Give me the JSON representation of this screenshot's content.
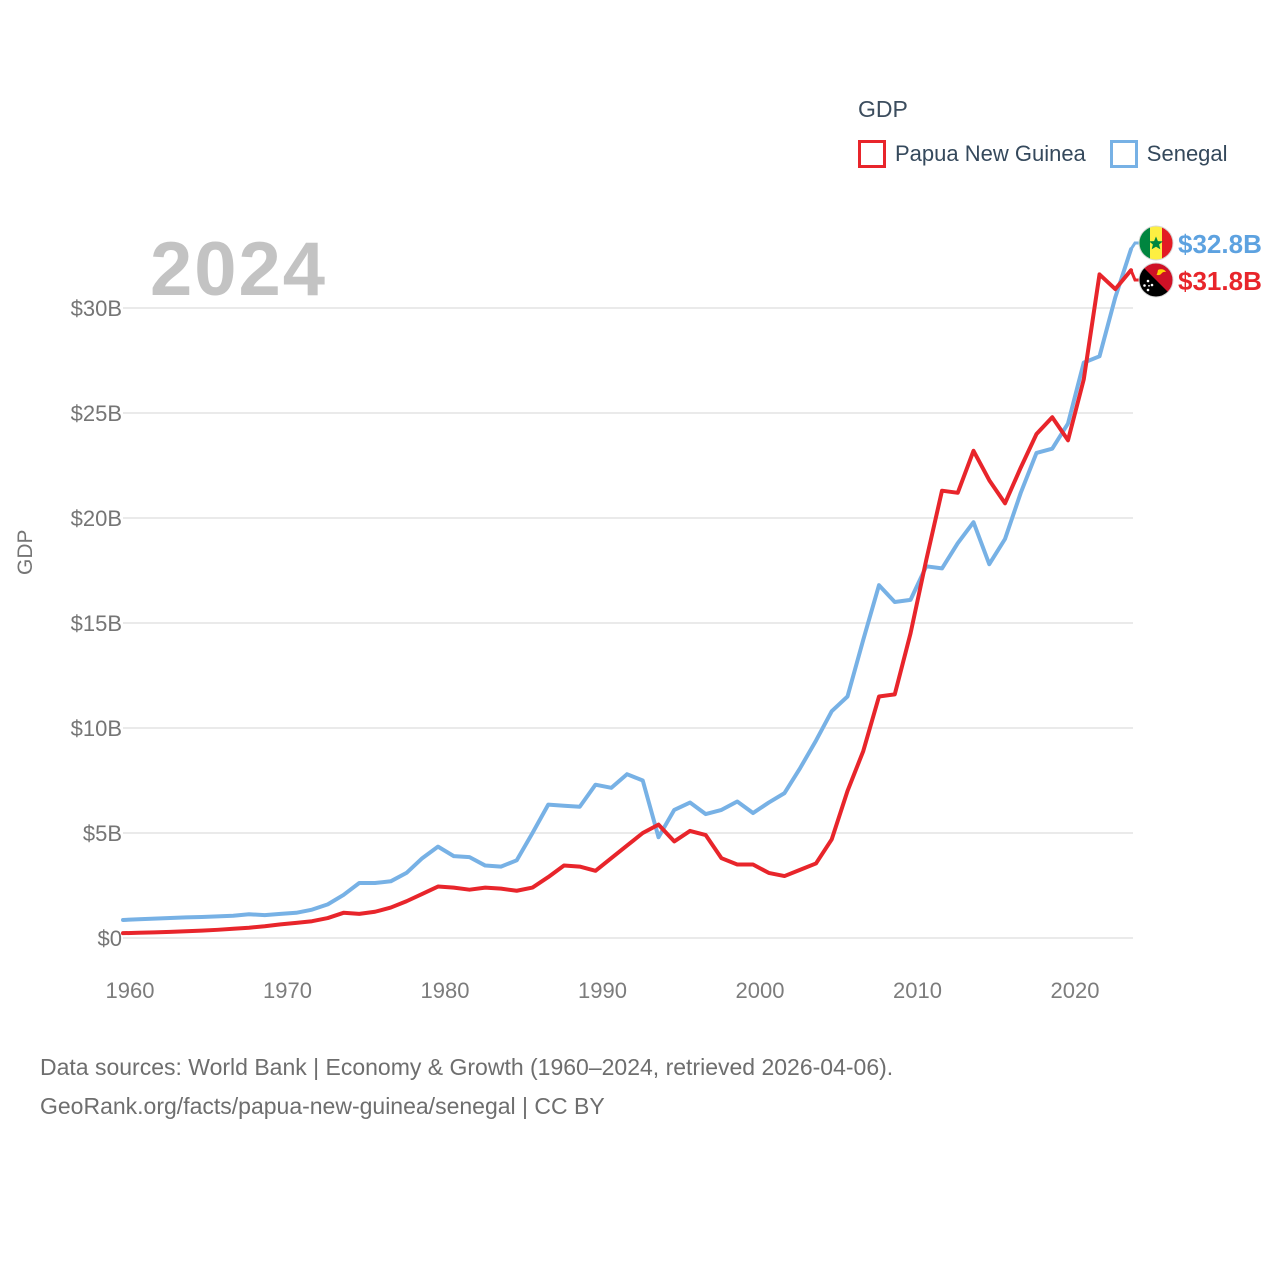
{
  "page": {
    "background": "#ffffff"
  },
  "legend": {
    "title": "GDP",
    "items": [
      {
        "label": "Papua New Guinea",
        "color": "#e8252b"
      },
      {
        "label": "Senegal",
        "color": "#77b1e5"
      }
    ]
  },
  "watermark": "2024",
  "end_labels": [
    {
      "series": "Senegal",
      "text": "$32.8B",
      "color": "#5da2e0",
      "flag_icon": "senegal-flag"
    },
    {
      "series": "Papua New Guinea",
      "text": "$31.8B",
      "color": "#e8252b",
      "flag_icon": "papua-new-guinea-flag"
    }
  ],
  "footer": {
    "line1": "Data sources: World Bank | Economy & Growth (1960–2024, retrieved 2026-04-06).",
    "line2": "GeoRank.org/facts/papua-new-guinea/senegal | CC BY"
  },
  "chart_data": {
    "type": "line",
    "title": "GDP",
    "xlabel": "",
    "ylabel": "GDP",
    "xlim": [
      1960,
      2024
    ],
    "ylim": [
      0,
      33.6
    ],
    "grid": "horizontal",
    "legend_position": "top-right",
    "x": [
      1960,
      1961,
      1962,
      1963,
      1964,
      1965,
      1966,
      1967,
      1968,
      1969,
      1970,
      1971,
      1972,
      1973,
      1974,
      1975,
      1976,
      1977,
      1978,
      1979,
      1980,
      1981,
      1982,
      1983,
      1984,
      1985,
      1986,
      1987,
      1988,
      1989,
      1990,
      1991,
      1992,
      1993,
      1994,
      1995,
      1996,
      1997,
      1998,
      1999,
      2000,
      2001,
      2002,
      2003,
      2004,
      2005,
      2006,
      2007,
      2008,
      2009,
      2010,
      2011,
      2012,
      2013,
      2014,
      2015,
      2016,
      2017,
      2018,
      2019,
      2020,
      2021,
      2022,
      2023,
      2024
    ],
    "x_ticks": {
      "values": [
        1960,
        1970,
        1980,
        1990,
        2000,
        2010,
        2020
      ],
      "labels": [
        "1960",
        "1970",
        "1980",
        "1990",
        "2000",
        "2010",
        "2020"
      ]
    },
    "y_ticks": {
      "values": [
        0,
        5,
        10,
        15,
        20,
        25,
        30
      ],
      "labels": [
        "$0",
        "$5B",
        "$10B",
        "$15B",
        "$20B",
        "$25B",
        "$30B"
      ]
    },
    "units": "billions of current US dollars",
    "series": [
      {
        "name": "Senegal",
        "color": "#77b1e5",
        "values": [
          0.86,
          0.89,
          0.92,
          0.95,
          0.98,
          1.0,
          1.03,
          1.06,
          1.13,
          1.09,
          1.15,
          1.2,
          1.35,
          1.6,
          2.05,
          2.62,
          2.62,
          2.7,
          3.1,
          3.8,
          4.35,
          3.9,
          3.85,
          3.45,
          3.4,
          3.7,
          5.0,
          6.35,
          6.3,
          6.25,
          7.3,
          7.15,
          7.8,
          7.5,
          4.8,
          6.1,
          6.45,
          5.9,
          6.1,
          6.5,
          5.95,
          6.45,
          6.9,
          8.1,
          9.4,
          10.8,
          11.5,
          14.2,
          16.8,
          16.0,
          16.1,
          17.7,
          17.6,
          18.8,
          19.8,
          17.8,
          19.0,
          21.2,
          23.1,
          23.3,
          24.5,
          27.4,
          27.7,
          30.5,
          32.8
        ]
      },
      {
        "name": "Papua New Guinea",
        "color": "#e8252b",
        "values": [
          0.23,
          0.25,
          0.27,
          0.29,
          0.32,
          0.35,
          0.39,
          0.44,
          0.49,
          0.56,
          0.65,
          0.72,
          0.8,
          0.95,
          1.2,
          1.15,
          1.25,
          1.45,
          1.75,
          2.1,
          2.45,
          2.4,
          2.3,
          2.4,
          2.35,
          2.25,
          2.4,
          2.9,
          3.45,
          3.4,
          3.2,
          3.8,
          4.4,
          5.0,
          5.4,
          4.6,
          5.1,
          4.9,
          3.8,
          3.5,
          3.5,
          3.1,
          2.95,
          3.25,
          3.55,
          4.7,
          7.0,
          8.9,
          11.5,
          11.6,
          14.5,
          18.0,
          21.3,
          21.2,
          23.2,
          21.8,
          20.7,
          22.4,
          24.0,
          24.8,
          23.7,
          26.6,
          31.6,
          30.9,
          31.8
        ]
      }
    ],
    "end_markers": [
      {
        "series": "Senegal",
        "label": "$32.8B"
      },
      {
        "series": "Papua New Guinea",
        "label": "$31.8B"
      }
    ]
  }
}
